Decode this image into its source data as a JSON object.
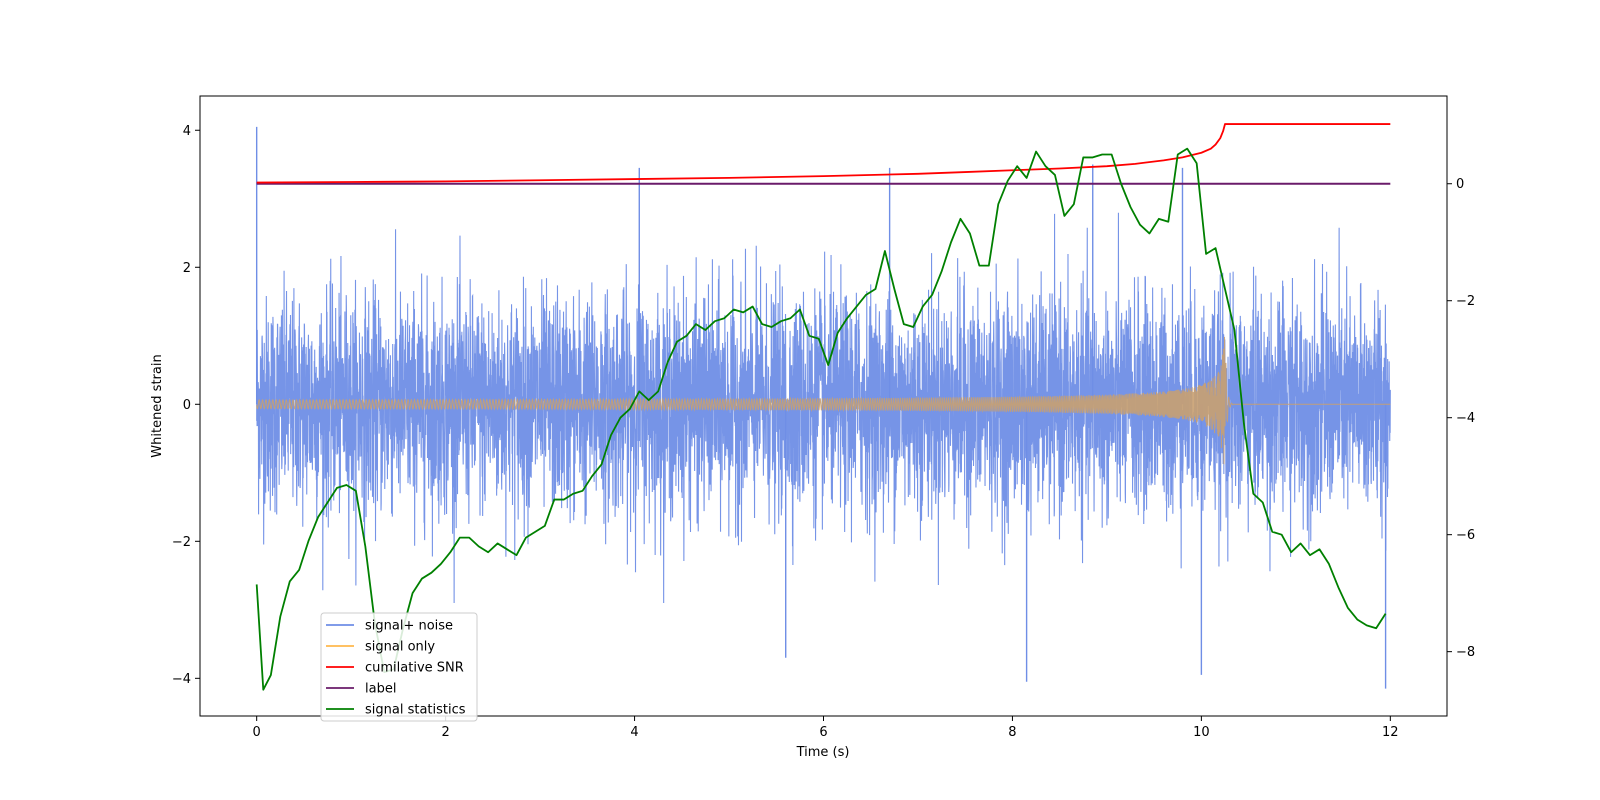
{
  "chart_data": {
    "type": "line",
    "title": "",
    "xlabel": "Time (s)",
    "ylabel": "Whitened strain",
    "ylabel_right": "",
    "xlim": [
      -0.6,
      12.6
    ],
    "ylim": [
      -4.55,
      4.5
    ],
    "ylim_right": [
      -9.1,
      1.5
    ],
    "x_ticks": [
      0,
      2,
      4,
      6,
      8,
      10,
      12
    ],
    "x_tick_labels": [
      "0",
      "2",
      "4",
      "6",
      "8",
      "10",
      "12"
    ],
    "y_ticks": [
      -4,
      -2,
      0,
      2,
      4
    ],
    "y_tick_labels": [
      "−4",
      "−2",
      "0",
      "2",
      "4"
    ],
    "y_ticks_right": [
      -8,
      -6,
      -4,
      -2,
      0
    ],
    "y_tick_labels_right": [
      "−8",
      "−6",
      "−4",
      "−2",
      "0"
    ],
    "legend_position": "lower-left",
    "series": [
      {
        "name": "signal+ noise",
        "axis": "left",
        "color": "#6f8ee6",
        "x_range": [
          0,
          12
        ],
        "envelope_upper_typical": 2.3,
        "envelope_lower_typical": -2.3,
        "peaks": [
          {
            "x": 0.0,
            "y": 4.05
          },
          {
            "x": 4.05,
            "y": 3.45
          },
          {
            "x": 6.7,
            "y": 3.45
          },
          {
            "x": 8.85,
            "y": 3.5
          },
          {
            "x": 9.8,
            "y": 3.45
          },
          {
            "x": 5.6,
            "y": -3.7
          },
          {
            "x": 8.15,
            "y": -4.05
          },
          {
            "x": 10.0,
            "y": -3.95
          },
          {
            "x": 11.95,
            "y": -4.15
          }
        ]
      },
      {
        "name": "signal only",
        "axis": "left",
        "color": "#ffb84d",
        "x_range": [
          0,
          12
        ],
        "chirp_peak_time": 10.25,
        "chirp_peak_amplitude": 1.1
      },
      {
        "name": "cumilative SNR",
        "axis": "right",
        "color": "#ff0000",
        "x": [
          0,
          1,
          2,
          3,
          4,
          5,
          6,
          7,
          7.5,
          8,
          8.5,
          9,
          9.3,
          9.6,
          9.8,
          10.0,
          10.1,
          10.15,
          10.2,
          10.23,
          10.25,
          12
        ],
        "y": [
          0.02,
          0.03,
          0.04,
          0.06,
          0.08,
          0.1,
          0.13,
          0.17,
          0.2,
          0.23,
          0.26,
          0.3,
          0.34,
          0.4,
          0.45,
          0.53,
          0.6,
          0.67,
          0.78,
          0.9,
          1.02,
          1.02
        ]
      },
      {
        "name": "label",
        "axis": "right",
        "color": "#6a1b6a",
        "x": [
          0,
          12
        ],
        "y": [
          0,
          0
        ]
      },
      {
        "name": "signal statistics",
        "axis": "right",
        "color": "#008000",
        "x": [
          0.0,
          0.07,
          0.15,
          0.25,
          0.35,
          0.45,
          0.55,
          0.65,
          0.75,
          0.85,
          0.95,
          1.05,
          1.15,
          1.25,
          1.35,
          1.45,
          1.55,
          1.65,
          1.75,
          1.85,
          1.95,
          2.05,
          2.15,
          2.25,
          2.35,
          2.45,
          2.55,
          2.65,
          2.75,
          2.85,
          2.95,
          3.05,
          3.15,
          3.25,
          3.35,
          3.45,
          3.55,
          3.65,
          3.75,
          3.85,
          3.95,
          4.05,
          4.15,
          4.25,
          4.35,
          4.45,
          4.55,
          4.65,
          4.75,
          4.85,
          4.95,
          5.05,
          5.15,
          5.25,
          5.35,
          5.45,
          5.55,
          5.65,
          5.75,
          5.85,
          5.95,
          6.05,
          6.15,
          6.25,
          6.35,
          6.45,
          6.55,
          6.65,
          6.75,
          6.85,
          6.95,
          7.05,
          7.15,
          7.25,
          7.35,
          7.45,
          7.55,
          7.65,
          7.75,
          7.85,
          7.95,
          8.05,
          8.15,
          8.25,
          8.35,
          8.45,
          8.55,
          8.65,
          8.75,
          8.85,
          8.95,
          9.05,
          9.15,
          9.25,
          9.35,
          9.45,
          9.55,
          9.65,
          9.75,
          9.85,
          9.95,
          10.05,
          10.15,
          10.25,
          10.35,
          10.45,
          10.55,
          10.65,
          10.75,
          10.85,
          10.95,
          11.05,
          11.15,
          11.25,
          11.35,
          11.45,
          11.55,
          11.65,
          11.75,
          11.85,
          11.95
        ],
        "y": [
          -6.85,
          -8.65,
          -8.4,
          -7.4,
          -6.8,
          -6.6,
          -6.1,
          -5.7,
          -5.45,
          -5.2,
          -5.15,
          -5.25,
          -6.2,
          -7.5,
          -8.35,
          -8.3,
          -7.6,
          -7.0,
          -6.75,
          -6.65,
          -6.5,
          -6.3,
          -6.05,
          -6.05,
          -6.2,
          -6.3,
          -6.15,
          -6.25,
          -6.35,
          -6.05,
          -5.95,
          -5.85,
          -5.4,
          -5.4,
          -5.3,
          -5.25,
          -5.0,
          -4.8,
          -4.3,
          -4.0,
          -3.85,
          -3.55,
          -3.7,
          -3.55,
          -3.05,
          -2.7,
          -2.6,
          -2.4,
          -2.5,
          -2.35,
          -2.3,
          -2.15,
          -2.2,
          -2.1,
          -2.4,
          -2.45,
          -2.35,
          -2.3,
          -2.15,
          -2.6,
          -2.65,
          -3.1,
          -2.55,
          -2.3,
          -2.1,
          -1.9,
          -1.8,
          -1.15,
          -1.8,
          -2.4,
          -2.45,
          -2.1,
          -1.9,
          -1.5,
          -1.0,
          -0.6,
          -0.85,
          -1.4,
          -1.4,
          -0.35,
          0.05,
          0.3,
          0.1,
          0.55,
          0.3,
          0.15,
          -0.55,
          -0.35,
          0.45,
          0.45,
          0.5,
          0.5,
          0.0,
          -0.4,
          -0.7,
          -0.85,
          -0.6,
          -0.65,
          0.5,
          0.6,
          0.35,
          -1.2,
          -1.1,
          -1.8,
          -2.5,
          -4.1,
          -5.3,
          -5.45,
          -5.95,
          -6.0,
          -6.3,
          -6.15,
          -6.35,
          -6.25,
          -6.5,
          -6.9,
          -7.25,
          -7.45,
          -7.55,
          -7.6,
          -7.35
        ]
      }
    ]
  }
}
